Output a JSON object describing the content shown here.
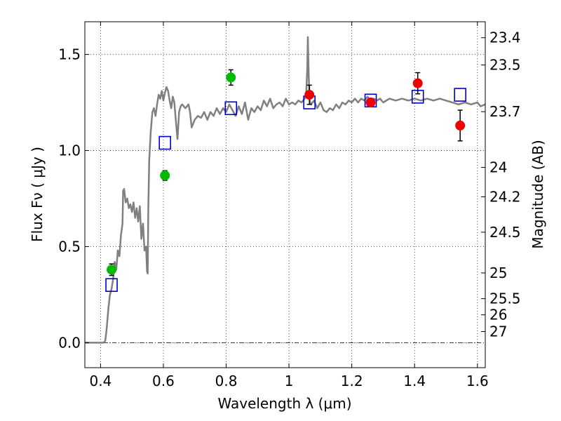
{
  "chart_data": {
    "type": "scatter",
    "xlabel": "Wavelength  λ (μm)",
    "ylabel": "Flux  Fν  ( μJy )",
    "y2label": "Magnitude (AB)",
    "xlim": [
      0.35,
      1.625
    ],
    "ylim": [
      -0.13,
      1.67
    ],
    "x_ticks": [
      0.4,
      0.6,
      0.8,
      1.0,
      1.2,
      1.4,
      1.6
    ],
    "x_tick_labels": [
      "0.4",
      "0.6",
      "0.8",
      "1",
      "1.2",
      "1.4",
      "1.6"
    ],
    "y_ticks": [
      0.0,
      0.5,
      1.0,
      1.5
    ],
    "y_tick_labels": [
      "0.0",
      "0.5",
      "1.0",
      "1.5"
    ],
    "mag_ticks": [
      {
        "label": "23.4",
        "flux": 1.587
      },
      {
        "label": "23.5",
        "flux": 1.445
      },
      {
        "label": "23.7",
        "flux": 1.202
      },
      {
        "label": "24",
        "flux": 0.912
      },
      {
        "label": "24.2",
        "flux": 0.759
      },
      {
        "label": "24.5",
        "flux": 0.575
      },
      {
        "label": "25",
        "flux": 0.363
      },
      {
        "label": "25.5",
        "flux": 0.229
      },
      {
        "label": "26",
        "flux": 0.145
      },
      {
        "label": "27",
        "flux": 0.058
      }
    ],
    "grid": true,
    "zero_line": 0.0,
    "colors": {
      "model": "#808080",
      "green_points": "#00bb00",
      "red_points": "#ee0000",
      "model_boxes": "#0000cc",
      "errorbar": "#000000"
    },
    "series": [
      {
        "style": "model-spectrum",
        "points": [
          [
            0.35,
            0.0
          ],
          [
            0.41,
            0.0
          ],
          [
            0.415,
            0.01
          ],
          [
            0.42,
            0.08
          ],
          [
            0.425,
            0.18
          ],
          [
            0.43,
            0.25
          ],
          [
            0.435,
            0.28
          ],
          [
            0.44,
            0.33
          ],
          [
            0.445,
            0.42
          ],
          [
            0.45,
            0.38
          ],
          [
            0.455,
            0.48
          ],
          [
            0.46,
            0.45
          ],
          [
            0.465,
            0.56
          ],
          [
            0.47,
            0.62
          ],
          [
            0.472,
            0.79
          ],
          [
            0.475,
            0.8
          ],
          [
            0.48,
            0.73
          ],
          [
            0.485,
            0.75
          ],
          [
            0.49,
            0.7
          ],
          [
            0.495,
            0.72
          ],
          [
            0.5,
            0.68
          ],
          [
            0.505,
            0.73
          ],
          [
            0.51,
            0.65
          ],
          [
            0.515,
            0.7
          ],
          [
            0.52,
            0.63
          ],
          [
            0.525,
            0.71
          ],
          [
            0.53,
            0.54
          ],
          [
            0.535,
            0.62
          ],
          [
            0.54,
            0.48
          ],
          [
            0.545,
            0.5
          ],
          [
            0.548,
            0.37
          ],
          [
            0.55,
            0.36
          ],
          [
            0.552,
            0.7
          ],
          [
            0.555,
            0.95
          ],
          [
            0.56,
            1.1
          ],
          [
            0.565,
            1.2
          ],
          [
            0.57,
            1.22
          ],
          [
            0.575,
            1.18
          ],
          [
            0.58,
            1.24
          ],
          [
            0.585,
            1.29
          ],
          [
            0.59,
            1.27
          ],
          [
            0.595,
            1.31
          ],
          [
            0.6,
            1.26
          ],
          [
            0.605,
            1.3
          ],
          [
            0.61,
            1.33
          ],
          [
            0.615,
            1.31
          ],
          [
            0.62,
            1.26
          ],
          [
            0.625,
            1.22
          ],
          [
            0.63,
            1.28
          ],
          [
            0.635,
            1.25
          ],
          [
            0.64,
            1.15
          ],
          [
            0.645,
            1.06
          ],
          [
            0.65,
            1.2
          ],
          [
            0.655,
            1.23
          ],
          [
            0.66,
            1.24
          ],
          [
            0.67,
            1.22
          ],
          [
            0.68,
            1.24
          ],
          [
            0.685,
            1.2
          ],
          [
            0.69,
            1.12
          ],
          [
            0.7,
            1.16
          ],
          [
            0.71,
            1.18
          ],
          [
            0.72,
            1.17
          ],
          [
            0.73,
            1.2
          ],
          [
            0.74,
            1.16
          ],
          [
            0.75,
            1.2
          ],
          [
            0.76,
            1.18
          ],
          [
            0.77,
            1.22
          ],
          [
            0.78,
            1.19
          ],
          [
            0.79,
            1.22
          ],
          [
            0.8,
            1.2
          ],
          [
            0.81,
            1.24
          ],
          [
            0.82,
            1.21
          ],
          [
            0.83,
            1.18
          ],
          [
            0.84,
            1.23
          ],
          [
            0.85,
            1.19
          ],
          [
            0.86,
            1.25
          ],
          [
            0.87,
            1.16
          ],
          [
            0.88,
            1.22
          ],
          [
            0.89,
            1.2
          ],
          [
            0.9,
            1.23
          ],
          [
            0.91,
            1.21
          ],
          [
            0.92,
            1.26
          ],
          [
            0.93,
            1.23
          ],
          [
            0.94,
            1.27
          ],
          [
            0.95,
            1.22
          ],
          [
            0.96,
            1.24
          ],
          [
            0.97,
            1.25
          ],
          [
            0.98,
            1.23
          ],
          [
            0.99,
            1.27
          ],
          [
            1.0,
            1.24
          ],
          [
            1.01,
            1.25
          ],
          [
            1.02,
            1.24
          ],
          [
            1.03,
            1.26
          ],
          [
            1.04,
            1.25
          ],
          [
            1.05,
            1.27
          ],
          [
            1.055,
            1.3
          ],
          [
            1.058,
            1.42
          ],
          [
            1.06,
            1.59
          ],
          [
            1.063,
            1.38
          ],
          [
            1.066,
            1.26
          ],
          [
            1.07,
            1.24
          ],
          [
            1.08,
            1.26
          ],
          [
            1.09,
            1.22
          ],
          [
            1.1,
            1.25
          ],
          [
            1.11,
            1.21
          ],
          [
            1.12,
            1.2
          ],
          [
            1.13,
            1.22
          ],
          [
            1.14,
            1.21
          ],
          [
            1.15,
            1.24
          ],
          [
            1.16,
            1.22
          ],
          [
            1.17,
            1.25
          ],
          [
            1.18,
            1.24
          ],
          [
            1.19,
            1.26
          ],
          [
            1.2,
            1.25
          ],
          [
            1.21,
            1.27
          ],
          [
            1.22,
            1.25
          ],
          [
            1.23,
            1.27
          ],
          [
            1.24,
            1.26
          ],
          [
            1.25,
            1.28
          ],
          [
            1.26,
            1.26
          ],
          [
            1.27,
            1.27
          ],
          [
            1.28,
            1.26
          ],
          [
            1.29,
            1.27
          ],
          [
            1.3,
            1.25
          ],
          [
            1.32,
            1.27
          ],
          [
            1.34,
            1.26
          ],
          [
            1.36,
            1.27
          ],
          [
            1.38,
            1.26
          ],
          [
            1.4,
            1.27
          ],
          [
            1.42,
            1.26
          ],
          [
            1.44,
            1.27
          ],
          [
            1.46,
            1.26
          ],
          [
            1.48,
            1.27
          ],
          [
            1.5,
            1.26
          ],
          [
            1.52,
            1.25
          ],
          [
            1.54,
            1.24
          ],
          [
            1.56,
            1.25
          ],
          [
            1.58,
            1.24
          ],
          [
            1.6,
            1.25
          ],
          [
            1.61,
            1.23
          ],
          [
            1.625,
            1.24
          ]
        ]
      },
      {
        "style": "green-points",
        "points": [
          {
            "x": 0.435,
            "y": 0.38,
            "err": 0.03
          },
          {
            "x": 0.605,
            "y": 0.87,
            "err": 0.025
          },
          {
            "x": 0.815,
            "y": 1.38,
            "err": 0.04
          }
        ]
      },
      {
        "style": "red-points",
        "points": [
          {
            "x": 1.065,
            "y": 1.29,
            "err": 0.05
          },
          {
            "x": 1.26,
            "y": 1.25,
            "err": 0.02
          },
          {
            "x": 1.41,
            "y": 1.35,
            "err": 0.055
          },
          {
            "x": 1.545,
            "y": 1.13,
            "err": 0.08
          }
        ]
      },
      {
        "style": "model-boxes",
        "points": [
          {
            "x": 0.435,
            "y": 0.3
          },
          {
            "x": 0.605,
            "y": 1.04
          },
          {
            "x": 0.815,
            "y": 1.22
          },
          {
            "x": 1.065,
            "y": 1.25
          },
          {
            "x": 1.26,
            "y": 1.26
          },
          {
            "x": 1.41,
            "y": 1.28
          },
          {
            "x": 1.545,
            "y": 1.29
          }
        ]
      }
    ]
  }
}
